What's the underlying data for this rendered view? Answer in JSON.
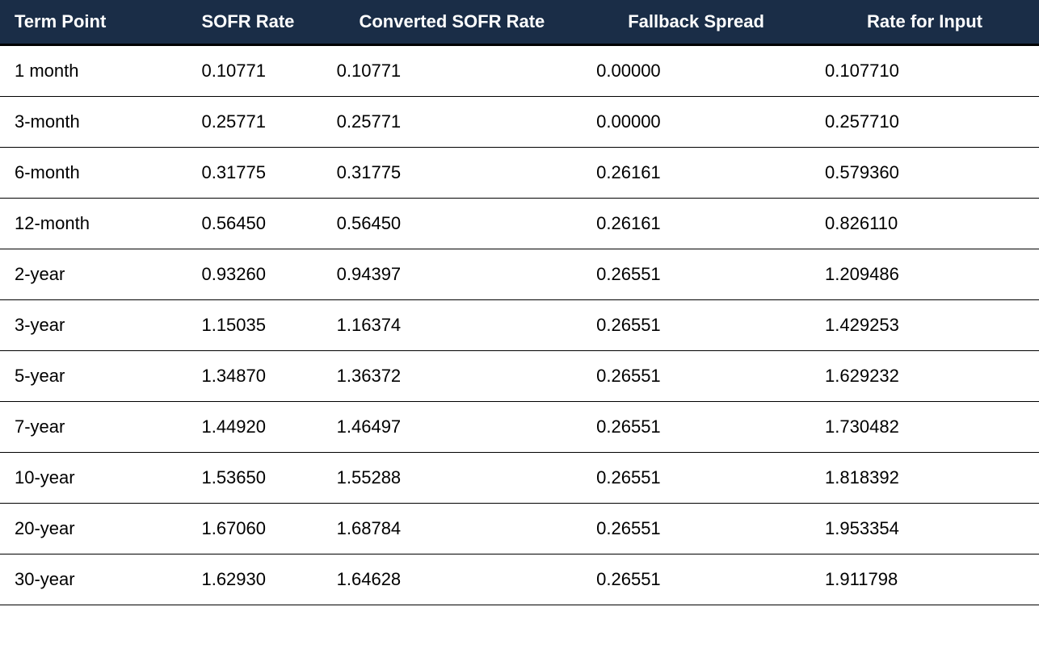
{
  "table": {
    "header_bg": "#1a2d47",
    "header_fg": "#ffffff",
    "row_border_color": "#000000",
    "header_border_color": "#000000",
    "font_family": "Arial",
    "header_fontsize": 22,
    "cell_fontsize": 22,
    "columns": [
      {
        "key": "term",
        "label": "Term Point",
        "align": "left",
        "width_pct": 18
      },
      {
        "key": "sofr",
        "label": "SOFR Rate",
        "align": "left",
        "width_pct": 13
      },
      {
        "key": "converted",
        "label": "Converted SOFR Rate",
        "align": "center",
        "width_pct": 25
      },
      {
        "key": "fallback",
        "label": "Fallback Spread",
        "align": "center",
        "width_pct": 22
      },
      {
        "key": "input",
        "label": "Rate for Input",
        "align": "center",
        "width_pct": 22
      }
    ],
    "rows": [
      {
        "term": "1 month",
        "sofr": "0.10771",
        "converted": "0.10771",
        "fallback": "0.00000",
        "input": "0.107710"
      },
      {
        "term": "3-month",
        "sofr": "0.25771",
        "converted": "0.25771",
        "fallback": "0.00000",
        "input": "0.257710"
      },
      {
        "term": "6-month",
        "sofr": "0.31775",
        "converted": "0.31775",
        "fallback": "0.26161",
        "input": "0.579360"
      },
      {
        "term": "12-month",
        "sofr": "0.56450",
        "converted": "0.56450",
        "fallback": "0.26161",
        "input": "0.826110"
      },
      {
        "term": "2-year",
        "sofr": "0.93260",
        "converted": "0.94397",
        "fallback": "0.26551",
        "input": "1.209486"
      },
      {
        "term": "3-year",
        "sofr": "1.15035",
        "converted": "1.16374",
        "fallback": "0.26551",
        "input": "1.429253"
      },
      {
        "term": "5-year",
        "sofr": "1.34870",
        "converted": "1.36372",
        "fallback": "0.26551",
        "input": "1.629232"
      },
      {
        "term": "7-year",
        "sofr": "1.44920",
        "converted": "1.46497",
        "fallback": "0.26551",
        "input": "1.730482"
      },
      {
        "term": "10-year",
        "sofr": "1.53650",
        "converted": "1.55288",
        "fallback": "0.26551",
        "input": "1.818392"
      },
      {
        "term": "20-year",
        "sofr": "1.67060",
        "converted": "1.68784",
        "fallback": "0.26551",
        "input": "1.953354"
      },
      {
        "term": "30-year",
        "sofr": "1.62930",
        "converted": "1.64628",
        "fallback": "0.26551",
        "input": "1.911798"
      }
    ]
  }
}
